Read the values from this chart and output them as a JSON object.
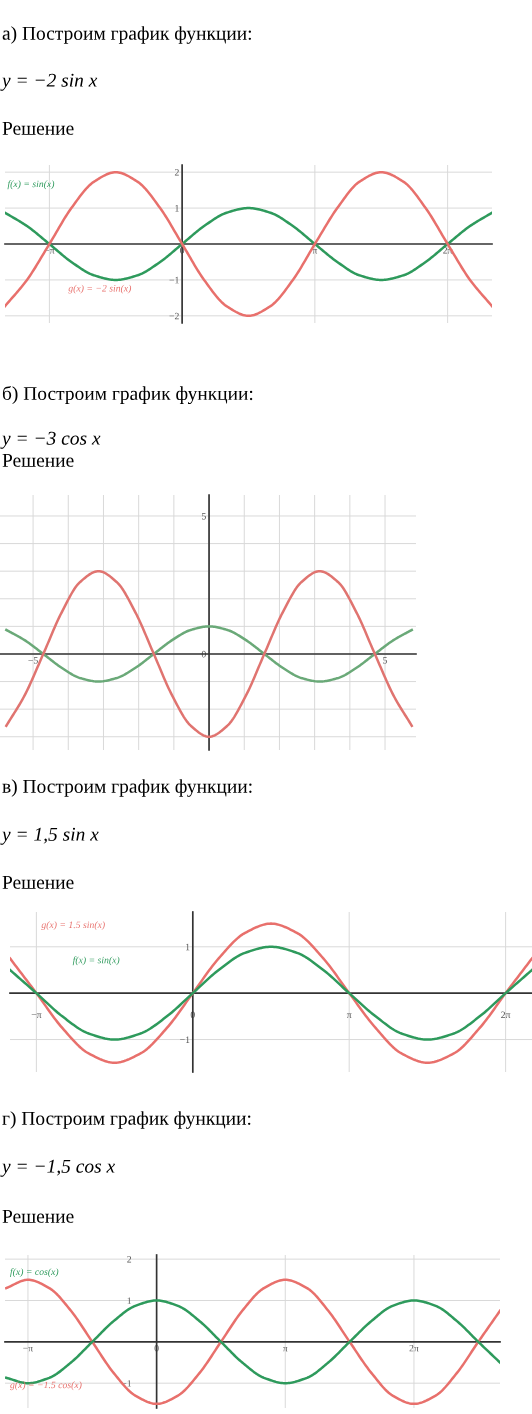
{
  "chart_data": [
    {
      "type": "line",
      "title": "а) Построим график функции:",
      "subtitle": "y = −2 sin x",
      "annotations": [
        "Решение"
      ],
      "x": [
        -4.19,
        -3.67,
        -3.14,
        -2.62,
        -2.09,
        -1.57,
        -1.05,
        -0.52,
        0,
        0.52,
        1.05,
        1.57,
        2.09,
        2.62,
        3.14,
        3.67,
        4.19,
        4.71,
        5.24,
        5.76,
        6.28,
        6.81,
        7.33
      ],
      "series": [
        {
          "name": "f(x) = sin(x)",
          "color": "#2e9a5c",
          "values": [
            0.87,
            0.5,
            0,
            -0.5,
            -0.87,
            -1,
            -0.87,
            -0.5,
            0,
            0.5,
            0.87,
            1,
            0.87,
            0.5,
            0,
            -0.5,
            -0.87,
            -1,
            -0.87,
            -0.5,
            0,
            0.5,
            0.87
          ]
        },
        {
          "name": "g(x) = −2 sin(x)",
          "color": "#e8706c",
          "values": [
            -1.73,
            -1,
            0,
            1,
            1.73,
            2,
            1.73,
            1,
            0,
            -1,
            -1.73,
            -2,
            -1.73,
            -1,
            0,
            1,
            1.73,
            2,
            1.73,
            1,
            0,
            -1,
            -1.73
          ]
        }
      ],
      "xlim": [
        -4.19,
        7.33
      ],
      "ylim": [
        -2.2,
        2.2
      ],
      "xticks": [
        {
          "value": -3.14,
          "label": "−π"
        },
        0,
        {
          "value": 3.14,
          "label": "π"
        },
        {
          "value": 6.28,
          "label": "2π"
        }
      ],
      "yticks": [
        -2,
        -1,
        1,
        2
      ],
      "grid": true
    },
    {
      "type": "line",
      "title": "б) Построим график функции:",
      "subtitle": "y = −3 cos x",
      "annotations": [
        "Решение"
      ],
      "x": [
        -5.76,
        -5.24,
        -4.71,
        -4.19,
        -3.67,
        -3.14,
        -2.62,
        -2.09,
        -1.57,
        -1.05,
        -0.52,
        0,
        0.52,
        1.05,
        1.57,
        2.09,
        2.62,
        3.14,
        3.67,
        4.19,
        4.71,
        5.24,
        5.76
      ],
      "series": [
        {
          "color": "#6aa978",
          "values": [
            0.87,
            0.5,
            0,
            -0.5,
            -0.87,
            -1,
            -0.87,
            -0.5,
            0,
            0.5,
            0.87,
            1,
            0.87,
            0.5,
            0,
            -0.5,
            -0.87,
            -1,
            -0.87,
            -0.5,
            0,
            0.5,
            0.87
          ]
        },
        {
          "color": "#e07470",
          "values": [
            -2.6,
            -1.5,
            0,
            1.5,
            2.6,
            3,
            2.6,
            1.5,
            0,
            -1.5,
            -2.6,
            -3,
            -2.6,
            -1.5,
            0,
            1.5,
            2.6,
            3,
            2.6,
            1.5,
            0,
            -1.5,
            -2.6
          ]
        }
      ],
      "xlim": [
        -5.94,
        5.88
      ],
      "ylim": [
        -3.48,
        5.76
      ],
      "xticks": [
        -5,
        {
          "value": -4,
          "label": null
        },
        {
          "value": -3,
          "label": null
        },
        {
          "value": -2,
          "label": null
        },
        {
          "value": -1,
          "label": null
        },
        {
          "value": 0,
          "label": null
        },
        {
          "value": 1,
          "label": null
        },
        {
          "value": 2,
          "label": null
        },
        {
          "value": 3,
          "label": null
        },
        {
          "value": 4,
          "label": null
        },
        5
      ],
      "yticks": [
        {
          "value": -3,
          "label": null
        },
        {
          "value": -2,
          "label": null
        },
        {
          "value": -1,
          "label": null
        },
        0,
        {
          "value": 1,
          "label": null
        },
        {
          "value": 2,
          "label": null
        },
        {
          "value": 3,
          "label": null
        },
        {
          "value": 4,
          "label": null
        },
        5
      ],
      "grid": true
    },
    {
      "type": "line",
      "title": "в) Построим график функции:",
      "subtitle": "y = 1,5 sin x",
      "annotations": [
        "Решение"
      ],
      "x": [
        -3.67,
        -3.14,
        -2.62,
        -2.09,
        -1.57,
        -1.05,
        -0.52,
        0,
        0.52,
        1.05,
        1.57,
        2.09,
        2.62,
        3.14,
        3.67,
        4.19,
        4.71,
        5.24,
        5.76,
        6.28,
        6.81
      ],
      "series": [
        {
          "name": "g(x) = 1.5 sin(x)",
          "color": "#e8706c",
          "values": [
            0.75,
            0,
            -0.75,
            -1.3,
            -1.5,
            -1.3,
            -0.75,
            0,
            0.75,
            1.3,
            1.5,
            1.3,
            0.75,
            0,
            -0.75,
            -1.3,
            -1.5,
            -1.3,
            -0.75,
            0,
            0.75
          ]
        },
        {
          "name": "f(x) = sin(x)",
          "color": "#2e9a5c",
          "values": [
            0.5,
            0,
            -0.5,
            -0.87,
            -1,
            -0.87,
            -0.5,
            0,
            0.5,
            0.87,
            1,
            0.87,
            0.5,
            0,
            -0.5,
            -0.87,
            -1,
            -0.87,
            -0.5,
            0,
            0.5
          ]
        }
      ],
      "xlim": [
        -3.67,
        6.81
      ],
      "ylim": [
        -1.7,
        1.75
      ],
      "xticks": [
        {
          "value": -3.14,
          "label": "−π"
        },
        0,
        {
          "value": 3.14,
          "label": "π"
        },
        {
          "value": 6.28,
          "label": "2π"
        }
      ],
      "yticks": [
        -1,
        1
      ],
      "grid": true
    },
    {
      "type": "line",
      "title": "г) Построим график функции:",
      "subtitle": "y = −1,5 cos x",
      "annotations": [
        "Решение"
      ],
      "x": [
        -3.67,
        -3.14,
        -2.62,
        -2.09,
        -1.57,
        -1.05,
        -0.52,
        0,
        0.52,
        1.05,
        1.57,
        2.09,
        2.62,
        3.14,
        3.67,
        4.19,
        4.71,
        5.24,
        5.76,
        6.28,
        6.81,
        7.33,
        7.85,
        8.38
      ],
      "series": [
        {
          "name": "g(x) = −1.5 cos(x)",
          "color": "#e8706c",
          "values": [
            1.3,
            1.5,
            1.3,
            0.75,
            0,
            -0.75,
            -1.3,
            -1.5,
            -1.3,
            -0.75,
            0,
            0.75,
            1.3,
            1.5,
            1.3,
            0.75,
            0,
            -0.75,
            -1.3,
            -1.5,
            -1.3,
            -0.75,
            0,
            0.75
          ]
        },
        {
          "name": "f(x) = cos(x)",
          "color": "#2e9a5c",
          "values": [
            -0.87,
            -1,
            -0.87,
            -0.5,
            0,
            0.5,
            0.87,
            1,
            0.87,
            0.5,
            0,
            -0.5,
            -0.87,
            -1,
            -0.87,
            -0.5,
            0,
            0.5,
            0.87,
            1,
            0.87,
            0.5,
            0,
            -0.5
          ]
        }
      ],
      "xlim": [
        -3.7,
        8.38
      ],
      "ylim": [
        -1.6,
        2.1
      ],
      "xticks": [
        {
          "value": -3.14,
          "label": "−π"
        },
        0,
        {
          "value": 3.14,
          "label": "π"
        },
        {
          "value": 6.28,
          "label": "2π"
        }
      ],
      "yticks": [
        -1,
        1,
        2
      ],
      "grid": true
    }
  ]
}
